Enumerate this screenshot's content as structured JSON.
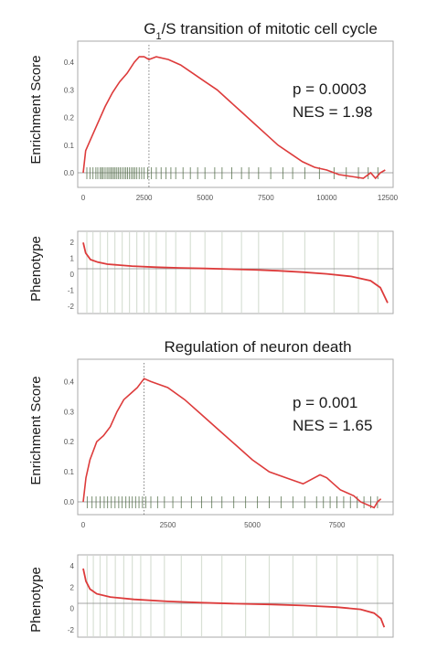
{
  "chart_data": [
    {
      "type": "line",
      "title": "G1/S transition of mitotic cell cycle",
      "title_parts": {
        "pre": "G",
        "sub": "1",
        "post": "/S transition of mitotic cell cycle"
      },
      "ylabel": "Enrichment Score",
      "xlim": [
        0,
        12500
      ],
      "ylim": [
        -0.05,
        0.45
      ],
      "x_ticks": [
        "0",
        "2500",
        "5000",
        "7500",
        "10000",
        "12500"
      ],
      "y_ticks": [
        "0.4",
        "0.3",
        "0.2",
        "0.1",
        "0.0"
      ],
      "p_value_text": "p = 0.0003",
      "nes_text": "NES = 1.98",
      "peak_x": 2700,
      "series": [
        {
          "x": [
            0,
            100,
            300,
            600,
            900,
            1200,
            1500,
            1800,
            2100,
            2300,
            2500,
            2700,
            3000,
            3500,
            4000,
            4500,
            5000,
            5500,
            6000,
            6500,
            7000,
            7500,
            8000,
            8500,
            9000,
            9500,
            10000,
            10500,
            11000,
            11500,
            11800,
            12000,
            12200,
            12400
          ],
          "y": [
            0.0,
            0.08,
            0.12,
            0.18,
            0.24,
            0.29,
            0.33,
            0.36,
            0.4,
            0.42,
            0.42,
            0.41,
            0.42,
            0.41,
            0.39,
            0.36,
            0.33,
            0.3,
            0.26,
            0.22,
            0.18,
            0.14,
            0.1,
            0.07,
            0.04,
            0.02,
            0.01,
            -0.01,
            -0.02,
            -0.03,
            0.0,
            -0.03,
            0.0,
            0.01
          ]
        }
      ],
      "hits": [
        150,
        280,
        400,
        520,
        600,
        700,
        760,
        820,
        900,
        980,
        1050,
        1120,
        1180,
        1250,
        1310,
        1380,
        1450,
        1520,
        1600,
        1680,
        1750,
        1820,
        1900,
        1980,
        2050,
        2120,
        2200,
        2300,
        2400,
        2500,
        2650,
        2800,
        3000,
        3200,
        3400,
        3600,
        3800,
        4100,
        4400,
        4700,
        5000,
        5400,
        5700,
        6100,
        6500,
        6800,
        7200,
        7700,
        8200,
        8600,
        9100,
        9700,
        10300,
        10800,
        11300,
        11700,
        12100
      ]
    },
    {
      "type": "line",
      "ylabel": "Phenotype",
      "xlim": [
        0,
        12500
      ],
      "ylim": [
        -2.3,
        2.3
      ],
      "y_ticks": [
        "2",
        "1",
        "0",
        "-1",
        "-2"
      ],
      "series": [
        {
          "x": [
            0,
            100,
            300,
            600,
            1000,
            2000,
            3000,
            4000,
            5000,
            6000,
            7000,
            8000,
            9000,
            10000,
            11000,
            11800,
            12200,
            12500
          ],
          "y": [
            2.0,
            1.2,
            0.7,
            0.5,
            0.35,
            0.2,
            0.12,
            0.06,
            0.02,
            -0.02,
            -0.06,
            -0.12,
            -0.2,
            -0.3,
            -0.45,
            -0.7,
            -1.1,
            -2.0
          ]
        }
      ],
      "bands": [
        150,
        400,
        700,
        1000,
        1300,
        1600,
        1900,
        2200,
        2500,
        2700,
        3000,
        3400,
        3800,
        4400,
        5000,
        5700,
        6500,
        7200,
        8200,
        9100,
        10300,
        11300,
        12100
      ]
    },
    {
      "type": "line",
      "title": "Regulation of neuron death",
      "ylabel": "Enrichment Score",
      "xlim": [
        0,
        9000
      ],
      "ylim": [
        -0.05,
        0.45
      ],
      "x_ticks": [
        "0",
        "2500",
        "5000",
        "7500"
      ],
      "y_ticks": [
        "0.4",
        "0.3",
        "0.2",
        "0.1",
        "0.0"
      ],
      "p_value_text": "p = 0.001",
      "nes_text": "NES = 1.65",
      "peak_x": 1800,
      "series": [
        {
          "x": [
            0,
            80,
            200,
            400,
            600,
            800,
            1000,
            1200,
            1400,
            1600,
            1800,
            2000,
            2500,
            3000,
            3500,
            4000,
            4500,
            5000,
            5500,
            6000,
            6500,
            7000,
            7200,
            7400,
            7600,
            7800,
            8000,
            8200,
            8400,
            8600,
            8700,
            8800
          ],
          "y": [
            0.0,
            0.08,
            0.14,
            0.2,
            0.22,
            0.25,
            0.3,
            0.34,
            0.36,
            0.38,
            0.41,
            0.4,
            0.38,
            0.34,
            0.29,
            0.24,
            0.19,
            0.14,
            0.1,
            0.08,
            0.06,
            0.09,
            0.08,
            0.06,
            0.04,
            0.03,
            0.02,
            0.0,
            -0.02,
            -0.04,
            0.0,
            0.01
          ]
        }
      ],
      "hits": [
        120,
        260,
        380,
        500,
        620,
        720,
        830,
        940,
        1050,
        1150,
        1260,
        1360,
        1450,
        1550,
        1650,
        1750,
        1850,
        2000,
        2200,
        2400,
        2650,
        2900,
        3200,
        3500,
        3800,
        4100,
        4450,
        4800,
        5150,
        5500,
        5850,
        6200,
        6550,
        6900,
        7100,
        7300,
        7500,
        7700,
        7900,
        8100,
        8300,
        8500,
        8700
      ]
    },
    {
      "type": "line",
      "ylabel": "Phenotype",
      "xlim": [
        0,
        9000
      ],
      "ylim": [
        -2.6,
        2.6
      ],
      "y_ticks": [
        "4",
        "2",
        "0",
        "-2"
      ],
      "series": [
        {
          "x": [
            0,
            80,
            200,
            400,
            800,
            1500,
            2500,
            3500,
            4500,
            5500,
            6500,
            7500,
            8200,
            8600,
            8800,
            8900
          ],
          "y": [
            2.2,
            1.4,
            0.9,
            0.6,
            0.4,
            0.25,
            0.12,
            0.04,
            -0.03,
            -0.1,
            -0.2,
            -0.35,
            -0.55,
            -0.9,
            -1.4,
            -2.2
          ]
        }
      ],
      "bands": [
        120,
        300,
        500,
        700,
        950,
        1200,
        1450,
        1700,
        2000,
        2400,
        2900,
        3500,
        4100,
        4800,
        5500,
        6200,
        6900,
        7500,
        8100,
        8700
      ]
    }
  ]
}
